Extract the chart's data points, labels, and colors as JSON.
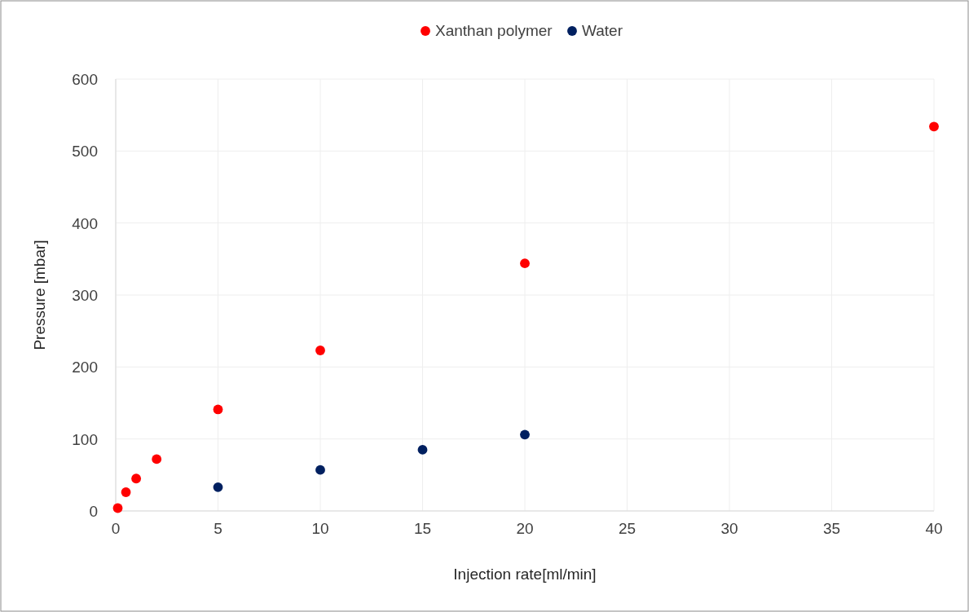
{
  "chart_data": {
    "type": "scatter",
    "xlabel": "Injection rate[ml/min]",
    "ylabel": "Pressure [mbar]",
    "xlim": [
      0,
      40
    ],
    "xticks": [
      0,
      5,
      10,
      15,
      20,
      25,
      30,
      35,
      40
    ],
    "ylim": [
      0,
      600
    ],
    "yticks": [
      0,
      100,
      200,
      300,
      400,
      500,
      600
    ],
    "grid": true,
    "legend": "top",
    "marker": "circle",
    "series": [
      {
        "name": "Xanthan polymer",
        "color": "#ff0000",
        "x": [
          0.1,
          0.5,
          1,
          2,
          5,
          10,
          20,
          40
        ],
        "values": [
          4,
          26,
          45,
          72,
          141,
          223,
          344,
          534
        ]
      },
      {
        "name": "Water",
        "color": "#002060",
        "x": [
          5,
          10,
          15,
          20
        ],
        "values": [
          33,
          57,
          85,
          106
        ]
      }
    ]
  }
}
